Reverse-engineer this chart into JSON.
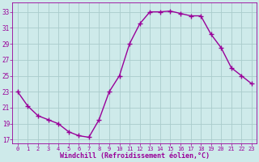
{
  "x": [
    0,
    1,
    2,
    3,
    4,
    5,
    6,
    7,
    8,
    9,
    10,
    11,
    12,
    13,
    14,
    15,
    16,
    17,
    18,
    19,
    20,
    21,
    22,
    23
  ],
  "y": [
    23.0,
    21.2,
    20.0,
    19.5,
    19.0,
    18.0,
    17.5,
    17.3,
    19.5,
    23.0,
    25.0,
    29.0,
    31.5,
    33.0,
    33.0,
    33.1,
    32.8,
    32.5,
    32.5,
    30.2,
    28.5,
    26.0,
    25.0,
    24.0
  ],
  "line_color": "#990099",
  "marker": "+",
  "marker_size": 4,
  "xlim": [
    -0.5,
    23.5
  ],
  "ylim": [
    16.5,
    34.2
  ],
  "yticks": [
    17,
    19,
    21,
    23,
    25,
    27,
    29,
    31,
    33
  ],
  "xticks": [
    0,
    1,
    2,
    3,
    4,
    5,
    6,
    7,
    8,
    9,
    10,
    11,
    12,
    13,
    14,
    15,
    16,
    17,
    18,
    19,
    20,
    21,
    22,
    23
  ],
  "xlabel": "Windchill (Refroidissement éolien,°C)",
  "bg_color": "#ceeaea",
  "grid_color": "#aacccc",
  "line_width": 1.0,
  "label_fontsize": 5.0,
  "ylabel_fontsize": 5.5,
  "xlabel_fontsize": 6.0,
  "label_color": "#990099",
  "tick_color": "#990099",
  "spine_color": "#990099"
}
